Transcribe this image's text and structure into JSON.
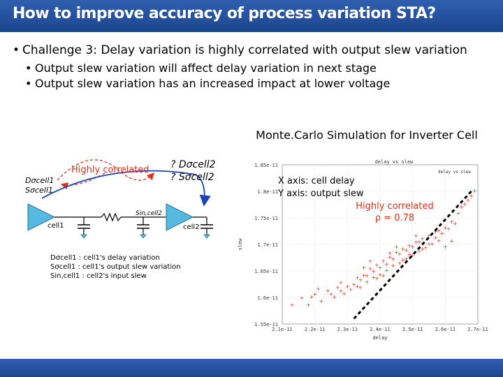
{
  "slide": {
    "title": "How to improve accuracy of process variation STA?",
    "bullet_main": "Challenge 3: Delay variation is highly correlated with output slew variation",
    "sub_bullets": [
      "Output slew variation will affect delay variation in next stage",
      "Output slew variation has an increased impact at lower voltage"
    ]
  },
  "diagram": {
    "cell1_delay": "Dσcell1",
    "cell1_slew": "Sσcell1",
    "correlated_label": "Highly correlated",
    "cell2_delay": "? Dσcell2",
    "cell2_slew": "? Sσcell2",
    "sin_label": "Sin,cell2",
    "cell1_label": "cell1",
    "cell2_label": "cell2",
    "legend": [
      "Dσcell1 : cell1's delay variation",
      "Sσcell1 : cell1's output slew variation",
      "Sin,cell1 : cell2's input slew"
    ]
  },
  "chart_data": {
    "type": "scatter",
    "title": "Monte.Carlo Simulation for Inverter Cell",
    "inner_title": "delay vs slew",
    "legend": "delay vs slew",
    "xlabel": "delay",
    "ylabel": "slew",
    "x_ticks": [
      "2.1e-11",
      "2.2e-11",
      "2.3e-11",
      "2.4e-11",
      "2.5e-11",
      "2.6e-11",
      "2.7e-11"
    ],
    "y_ticks": [
      "1.85e-11",
      "1.8e-11",
      "1.75e-11",
      "1.7e-11",
      "1.65e-11",
      "1.6e-11",
      "1.55e-11"
    ],
    "xlim": [
      2.1e-11,
      2.7e-11
    ],
    "ylim": [
      1.55e-11,
      1.85e-11
    ],
    "annotation_axes": [
      "X axis: cell delay",
      "Y axis: output slew"
    ],
    "correlation_label": "Highly correlated",
    "correlation_value": "ρ = 0.78",
    "points": [
      [
        2.13,
        1.585
      ],
      [
        2.16,
        1.598
      ],
      [
        2.18,
        1.585
      ],
      [
        2.2,
        1.605
      ],
      [
        2.22,
        1.592
      ],
      [
        2.24,
        1.612
      ],
      [
        2.26,
        1.6
      ],
      [
        2.27,
        1.618
      ],
      [
        2.28,
        1.627
      ],
      [
        2.29,
        1.606
      ],
      [
        2.31,
        1.614
      ],
      [
        2.32,
        1.624
      ],
      [
        2.33,
        1.636
      ],
      [
        2.34,
        1.618
      ],
      [
        2.35,
        1.641
      ],
      [
        2.36,
        1.628
      ],
      [
        2.37,
        1.653
      ],
      [
        2.38,
        1.637
      ],
      [
        2.39,
        1.66
      ],
      [
        2.4,
        1.642
      ],
      [
        2.41,
        1.668
      ],
      [
        2.42,
        1.65
      ],
      [
        2.43,
        1.675
      ],
      [
        2.44,
        1.659
      ],
      [
        2.45,
        1.684
      ],
      [
        2.46,
        1.664
      ],
      [
        2.47,
        1.69
      ],
      [
        2.48,
        1.672
      ],
      [
        2.49,
        1.697
      ],
      [
        2.5,
        1.678
      ],
      [
        2.51,
        1.703
      ],
      [
        2.52,
        1.686
      ],
      [
        2.53,
        1.71
      ],
      [
        2.54,
        1.693
      ],
      [
        2.55,
        1.716
      ],
      [
        2.56,
        1.7
      ],
      [
        2.57,
        1.723
      ],
      [
        2.58,
        1.706
      ],
      [
        2.6,
        1.73
      ],
      [
        2.62,
        1.742
      ],
      [
        2.64,
        1.758
      ],
      [
        2.66,
        1.775
      ],
      [
        2.68,
        1.79
      ],
      [
        2.44,
        1.672
      ],
      [
        2.46,
        1.681
      ],
      [
        2.48,
        1.688
      ],
      [
        2.5,
        1.695
      ],
      [
        2.52,
        1.704
      ],
      [
        2.42,
        1.662
      ],
      [
        2.4,
        1.655
      ],
      [
        2.38,
        1.648
      ],
      [
        2.36,
        1.64
      ],
      [
        2.34,
        1.632
      ],
      [
        2.3,
        1.62
      ],
      [
        2.28,
        1.611
      ],
      [
        2.25,
        1.605
      ],
      [
        2.55,
        1.7
      ],
      [
        2.57,
        1.712
      ],
      [
        2.59,
        1.72
      ],
      [
        2.61,
        1.728
      ],
      [
        2.53,
        1.69
      ],
      [
        2.47,
        1.67
      ],
      [
        2.45,
        1.694
      ],
      [
        2.43,
        1.683
      ],
      [
        2.35,
        1.655
      ],
      [
        2.33,
        1.62
      ],
      [
        2.21,
        1.615
      ],
      [
        2.19,
        1.6
      ],
      [
        2.6,
        1.695
      ],
      [
        2.58,
        1.725
      ],
      [
        2.62,
        1.705
      ],
      [
        2.51,
        1.715
      ],
      [
        2.49,
        1.68
      ],
      [
        2.41,
        1.64
      ],
      [
        2.39,
        1.635
      ],
      [
        2.37,
        1.668
      ],
      [
        2.63,
        1.738
      ],
      [
        2.65,
        1.77
      ],
      [
        2.67,
        1.782
      ],
      [
        2.69,
        1.8
      ]
    ]
  },
  "colors": {
    "title_bar": "#1d4590",
    "accent_red": "#e0301e",
    "cell_fill": "#55b9e0",
    "arrow_blue": "#1a45b0",
    "scatter_red": "#e0301e"
  }
}
